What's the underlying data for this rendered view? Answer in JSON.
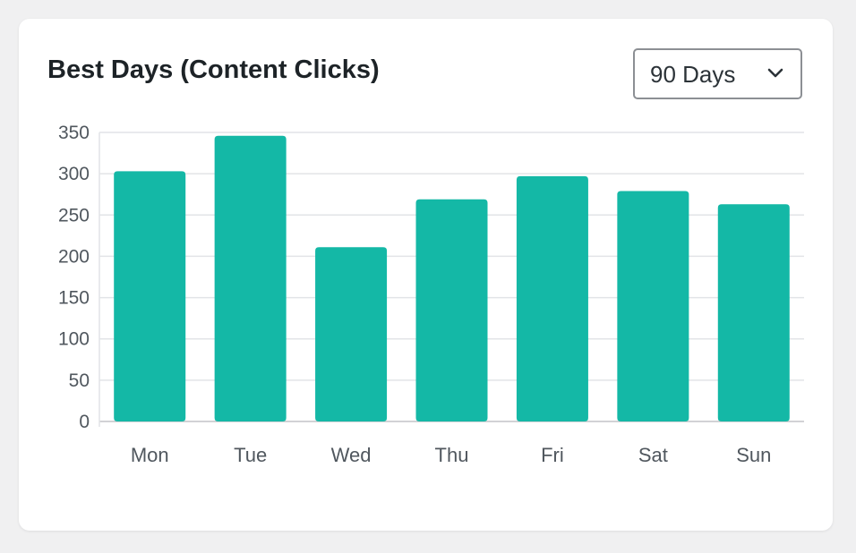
{
  "card": {
    "title": "Best Days (Content Clicks)"
  },
  "range_select": {
    "selected": "90 Days",
    "icon": "chevron-down-icon"
  },
  "colors": {
    "bar": "#14b8a6",
    "grid": "#e2e4e7",
    "axis": "#c3c4c7"
  },
  "chart_data": {
    "type": "bar",
    "title": "Best Days (Content Clicks)",
    "categories": [
      "Mon",
      "Tue",
      "Wed",
      "Thu",
      "Fri",
      "Sat",
      "Sun"
    ],
    "values": [
      303,
      346,
      211,
      269,
      297,
      279,
      263
    ],
    "yticks": [
      0,
      50,
      100,
      150,
      200,
      250,
      300,
      350
    ],
    "ylim": [
      0,
      350
    ],
    "grid": true,
    "legend": "none"
  }
}
